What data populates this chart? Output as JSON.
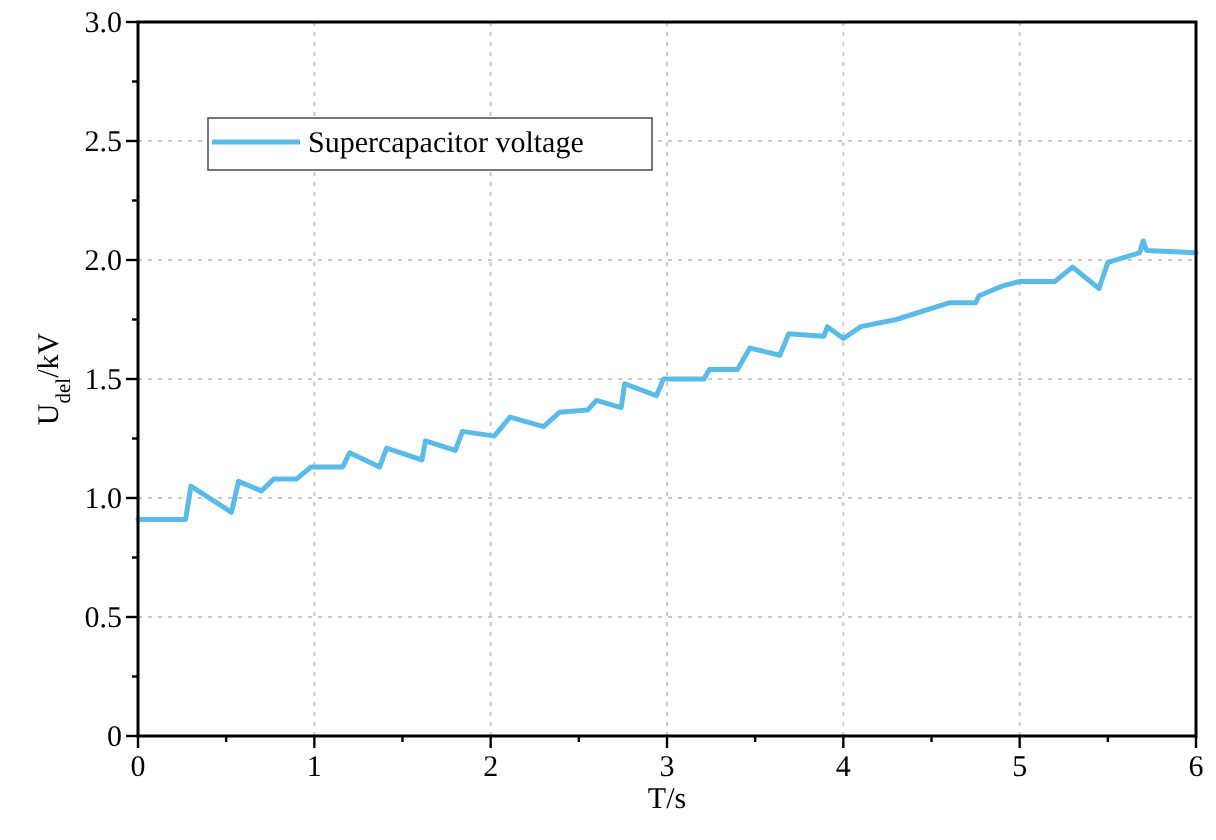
{
  "chart_data": {
    "type": "line",
    "xlabel": "T/s",
    "ylabel": "U$_{del}$/kV",
    "xlim": [
      0,
      6
    ],
    "ylim": [
      0,
      3
    ],
    "xticks": [
      0,
      {
        "value": 0.5,
        "label": null
      },
      1,
      {
        "value": 1.5,
        "label": null
      },
      2,
      {
        "value": 2.5,
        "label": null
      },
      3,
      {
        "value": 3.5,
        "label": null
      },
      4,
      {
        "value": 4.5,
        "label": null
      },
      5,
      {
        "value": 5.5,
        "label": null
      },
      6
    ],
    "yticks": [
      {
        "value": 0,
        "label": "0"
      },
      {
        "value": 0.25,
        "label": null
      },
      0.5,
      {
        "value": 0.75,
        "label": null
      },
      {
        "value": 1,
        "label": "1.0"
      },
      {
        "value": 1.25,
        "label": null
      },
      1.5,
      {
        "value": 1.75,
        "label": null
      },
      {
        "value": 2,
        "label": "2.0"
      },
      {
        "value": 2.25,
        "label": null
      },
      2.5,
      {
        "value": 2.75,
        "label": null
      },
      {
        "value": 3,
        "label": "3.0"
      }
    ],
    "grid": true,
    "legend": "top left",
    "line_style": "solid",
    "marker": "none",
    "series": [
      {
        "name": "Supercapacitor voltage",
        "color": "#5bbbe8",
        "x": [
          0,
          0.27,
          0.3,
          0.53,
          0.57,
          0.7,
          0.77,
          0.9,
          0.98,
          1.16,
          1.2,
          1.37,
          1.41,
          1.61,
          1.63,
          1.8,
          1.84,
          2.02,
          2.11,
          2.3,
          2.39,
          2.55,
          2.6,
          2.74,
          2.76,
          2.94,
          2.98,
          3.21,
          3.24,
          3.4,
          3.47,
          3.64,
          3.69,
          3.89,
          3.91,
          4.0,
          4.1,
          4.3,
          4.6,
          4.75,
          4.77,
          4.9,
          5.0,
          5.2,
          5.3,
          5.45,
          5.5,
          5.68,
          5.7,
          5.72,
          6.0
        ],
        "values": [
          0.91,
          0.91,
          1.05,
          0.94,
          1.07,
          1.03,
          1.08,
          1.08,
          1.13,
          1.13,
          1.19,
          1.13,
          1.21,
          1.16,
          1.24,
          1.2,
          1.28,
          1.26,
          1.34,
          1.3,
          1.36,
          1.37,
          1.41,
          1.38,
          1.48,
          1.43,
          1.5,
          1.5,
          1.54,
          1.54,
          1.63,
          1.6,
          1.69,
          1.68,
          1.72,
          1.67,
          1.72,
          1.75,
          1.82,
          1.82,
          1.85,
          1.89,
          1.91,
          1.91,
          1.97,
          1.88,
          1.99,
          2.03,
          2.08,
          2.04,
          2.03
        ]
      }
    ]
  }
}
